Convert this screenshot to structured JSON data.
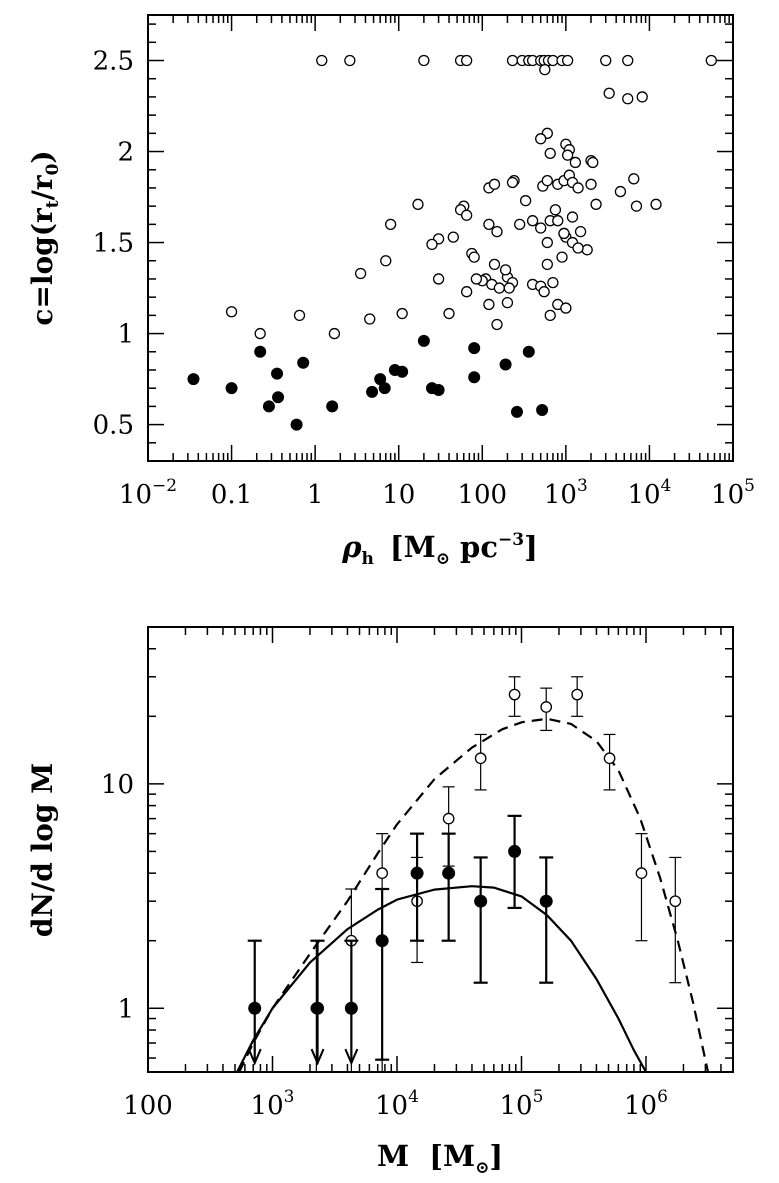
{
  "chart_data": [
    {
      "type": "scatter",
      "xlabel_symbol": "ρ",
      "xlabel_sub": "h",
      "xlabel_units": "[M",
      "xlabel_units_sub": "⊙",
      "xlabel_units_rest": " pc",
      "xlabel_units_sup": "−3",
      "xlabel_units_close": "]",
      "ylabel_prefix": "c=log(r",
      "ylabel_sub1": "t",
      "ylabel_mid": "/r",
      "ylabel_sub2": "0",
      "ylabel_close": ")",
      "xscale": "log",
      "xlim": [
        0.01,
        100000
      ],
      "ylim": [
        0.3,
        2.75
      ],
      "x_ticks": [
        {
          "value": 0.01,
          "base": "10",
          "exp": "−2"
        },
        {
          "value": 0.1,
          "label": "0.1"
        },
        {
          "value": 1,
          "label": "1"
        },
        {
          "value": 10,
          "label": "10"
        },
        {
          "value": 100,
          "label": "100"
        },
        {
          "value": 1000,
          "base": "10",
          "exp": "3"
        },
        {
          "value": 10000,
          "base": "10",
          "exp": "4"
        },
        {
          "value": 100000,
          "base": "10",
          "exp": "5"
        }
      ],
      "y_ticks": [
        {
          "value": 0.5,
          "label": "0.5"
        },
        {
          "value": 1,
          "label": "1"
        },
        {
          "value": 1.5,
          "label": "1.5"
        },
        {
          "value": 2,
          "label": "2"
        },
        {
          "value": 2.5,
          "label": "2.5"
        }
      ],
      "series": [
        {
          "marker": "open-circle",
          "points": [
            [
              1.2,
              2.5
            ],
            [
              2.6,
              2.5
            ],
            [
              20,
              2.5
            ],
            [
              55,
              2.5
            ],
            [
              65,
              2.5
            ],
            [
              230,
              2.5
            ],
            [
              300,
              2.5
            ],
            [
              360,
              2.5
            ],
            [
              400,
              2.5
            ],
            [
              500,
              2.5
            ],
            [
              550,
              2.5
            ],
            [
              620,
              2.5
            ],
            [
              700,
              2.5
            ],
            [
              900,
              2.5
            ],
            [
              1050,
              2.5
            ],
            [
              3000,
              2.5
            ],
            [
              5500,
              2.5
            ],
            [
              55000,
              2.5
            ],
            [
              560,
              2.45
            ],
            [
              3300,
              2.32
            ],
            [
              5500,
              2.29
            ],
            [
              8200,
              2.3
            ],
            [
              1300,
              1.94
            ],
            [
              600,
              2.1
            ],
            [
              500,
              2.07
            ],
            [
              1000,
              2.04
            ],
            [
              1100,
              2.01
            ],
            [
              1050,
              1.98
            ],
            [
              650,
              1.99
            ],
            [
              2000,
              1.95
            ],
            [
              2100,
              1.94
            ],
            [
              240,
              1.84
            ],
            [
              230,
              1.83
            ],
            [
              530,
              1.81
            ],
            [
              600,
              1.84
            ],
            [
              800,
              1.82
            ],
            [
              950,
              1.84
            ],
            [
              1100,
              1.87
            ],
            [
              1200,
              1.83
            ],
            [
              1400,
              1.8
            ],
            [
              2000,
              1.82
            ],
            [
              4500,
              1.78
            ],
            [
              6500,
              1.85
            ],
            [
              120,
              1.8
            ],
            [
              140,
              1.82
            ],
            [
              60,
              1.7
            ],
            [
              17,
              1.71
            ],
            [
              12000,
              1.71
            ],
            [
              7000,
              1.7
            ],
            [
              2300,
              1.71
            ],
            [
              750,
              1.68
            ],
            [
              400,
              1.62
            ],
            [
              330,
              1.73
            ],
            [
              120,
              1.6
            ],
            [
              280,
              1.6
            ],
            [
              150,
              1.56
            ],
            [
              500,
              1.58
            ],
            [
              650,
              1.62
            ],
            [
              800,
              1.62
            ],
            [
              1200,
              1.64
            ],
            [
              1500,
              1.56
            ],
            [
              600,
              1.5
            ],
            [
              950,
              1.55
            ],
            [
              1000,
              1.53
            ],
            [
              1800,
              1.46
            ],
            [
              1200,
              1.5
            ],
            [
              1400,
              1.47
            ],
            [
              55,
              1.68
            ],
            [
              65,
              1.65
            ],
            [
              45,
              1.53
            ],
            [
              30,
              1.52
            ],
            [
              25,
              1.49
            ],
            [
              75,
              1.44
            ],
            [
              80,
              1.42
            ],
            [
              8,
              1.6
            ],
            [
              3.5,
              1.33
            ],
            [
              7,
              1.4
            ],
            [
              4.5,
              1.08
            ],
            [
              11,
              1.11
            ],
            [
              1.7,
              1.0
            ],
            [
              0.65,
              1.1
            ],
            [
              0.1,
              1.12
            ],
            [
              0.22,
              1.0
            ],
            [
              110,
              1.3
            ],
            [
              130,
              1.27
            ],
            [
              160,
              1.25
            ],
            [
              140,
              1.38
            ],
            [
              200,
              1.31
            ],
            [
              190,
              1.35
            ],
            [
              230,
              1.28
            ],
            [
              400,
              1.27
            ],
            [
              500,
              1.26
            ],
            [
              700,
              1.28
            ],
            [
              600,
              1.38
            ],
            [
              900,
              1.42
            ],
            [
              950,
              1.55
            ],
            [
              40,
              1.11
            ],
            [
              65,
              1.23
            ],
            [
              100,
              1.29
            ],
            [
              200,
              1.17
            ],
            [
              210,
              1.25
            ],
            [
              120,
              1.16
            ],
            [
              550,
              1.23
            ],
            [
              650,
              1.1
            ],
            [
              800,
              1.16
            ],
            [
              1000,
              1.14
            ],
            [
              150,
              1.05
            ],
            [
              30,
              1.3
            ],
            [
              85,
              1.3
            ]
          ]
        },
        {
          "marker": "filled-circle",
          "points": [
            [
              0.035,
              0.75
            ],
            [
              0.1,
              0.7
            ],
            [
              0.22,
              0.9
            ],
            [
              0.35,
              0.78
            ],
            [
              0.28,
              0.6
            ],
            [
              0.36,
              0.65
            ],
            [
              0.6,
              0.5
            ],
            [
              0.72,
              0.84
            ],
            [
              1.6,
              0.6
            ],
            [
              4.8,
              0.68
            ],
            [
              6,
              0.75
            ],
            [
              6.8,
              0.7
            ],
            [
              9,
              0.8
            ],
            [
              11,
              0.79
            ],
            [
              20,
              0.96
            ],
            [
              25,
              0.7
            ],
            [
              30,
              0.69
            ],
            [
              80,
              0.92
            ],
            [
              80,
              0.76
            ],
            [
              190,
              0.83
            ],
            [
              260,
              0.57
            ],
            [
              360,
              0.9
            ],
            [
              520,
              0.58
            ]
          ]
        }
      ]
    },
    {
      "type": "scatter",
      "xlabel_main": "M  [M",
      "xlabel_sub": "⊙",
      "xlabel_close": "]",
      "ylabel": "dN/d log M",
      "xscale": "log",
      "yscale": "log",
      "xlim": [
        100,
        5000000
      ],
      "ylim": [
        0.52,
        50
      ],
      "x_ticks": [
        {
          "value": 100,
          "label": "100"
        },
        {
          "value": 1000,
          "base": "10",
          "exp": "3"
        },
        {
          "value": 10000,
          "base": "10",
          "exp": "4"
        },
        {
          "value": 100000,
          "base": "10",
          "exp": "5"
        },
        {
          "value": 1000000,
          "base": "10",
          "exp": "6"
        }
      ],
      "y_ticks": [
        {
          "value": 1,
          "label": "1"
        },
        {
          "value": 10,
          "label": "10"
        }
      ],
      "series": [
        {
          "marker": "open-circle",
          "points": [
            {
              "x": 2250,
              "y": 1,
              "lo": 0.52,
              "hi": 2
            },
            {
              "x": 4300,
              "y": 2,
              "lo": 0.52,
              "hi": 3.4
            },
            {
              "x": 7600,
              "y": 4,
              "lo": 0.52,
              "hi": 6
            },
            {
              "x": 14500,
              "y": 3,
              "lo": 1.6,
              "hi": 4.7
            },
            {
              "x": 26000,
              "y": 7,
              "lo": 4.3,
              "hi": 9.7
            },
            {
              "x": 47000,
              "y": 13,
              "lo": 9.4,
              "hi": 16.6
            },
            {
              "x": 88000,
              "y": 25,
              "lo": 20,
              "hi": 30
            },
            {
              "x": 158000,
              "y": 22,
              "lo": 17.3,
              "hi": 26.7
            },
            {
              "x": 280000,
              "y": 25,
              "lo": 20,
              "hi": 30
            },
            {
              "x": 510000,
              "y": 13,
              "lo": 9.4,
              "hi": 16.6
            },
            {
              "x": 920000,
              "y": 4,
              "lo": 2,
              "hi": 6
            },
            {
              "x": 1720000,
              "y": 3,
              "lo": 1.3,
              "hi": 4.7
            }
          ]
        },
        {
          "marker": "filled-circle",
          "points": [
            {
              "x": 720,
              "y": 1,
              "lo": 0.57,
              "hi": 2,
              "arrow": true
            },
            {
              "x": 2300,
              "y": 1,
              "lo": 0.57,
              "hi": 2,
              "arrow": true
            },
            {
              "x": 4300,
              "y": 1,
              "lo": 0.57,
              "hi": 2,
              "arrow": true
            },
            {
              "x": 7600,
              "y": 2,
              "lo": 0.59,
              "hi": 3.4
            },
            {
              "x": 14500,
              "y": 4,
              "lo": 2,
              "hi": 6
            },
            {
              "x": 26000,
              "y": 4,
              "lo": 2,
              "hi": 6
            },
            {
              "x": 47000,
              "y": 3,
              "lo": 1.3,
              "hi": 4.7
            },
            {
              "x": 88000,
              "y": 5,
              "lo": 2.8,
              "hi": 7.2
            },
            {
              "x": 158000,
              "y": 3,
              "lo": 1.3,
              "hi": 4.7
            }
          ]
        }
      ],
      "curves": [
        {
          "style": "dashed",
          "points": [
            [
              540,
              0.52
            ],
            [
              700,
              0.7
            ],
            [
              1000,
              1.0
            ],
            [
              2000,
              1.75
            ],
            [
              4000,
              3.0
            ],
            [
              7000,
              4.9
            ],
            [
              10000,
              6.6
            ],
            [
              20000,
              10.5
            ],
            [
              40000,
              14.5
            ],
            [
              70000,
              17.5
            ],
            [
              100000,
              18.8
            ],
            [
              160000,
              19.5
            ],
            [
              250000,
              18.5
            ],
            [
              400000,
              15.5
            ],
            [
              600000,
              11.5
            ],
            [
              900000,
              7.0
            ],
            [
              1300000,
              3.8
            ],
            [
              1800000,
              2.0
            ],
            [
              2400000,
              1.05
            ],
            [
              2800000,
              0.7
            ],
            [
              3150000,
              0.52
            ]
          ]
        },
        {
          "style": "solid",
          "points": [
            [
              520,
              0.52
            ],
            [
              700,
              0.72
            ],
            [
              1000,
              1.0
            ],
            [
              2000,
              1.6
            ],
            [
              4000,
              2.25
            ],
            [
              7000,
              2.75
            ],
            [
              10000,
              3.05
            ],
            [
              20000,
              3.38
            ],
            [
              40000,
              3.5
            ],
            [
              60000,
              3.45
            ],
            [
              100000,
              3.15
            ],
            [
              160000,
              2.6
            ],
            [
              250000,
              2.0
            ],
            [
              400000,
              1.35
            ],
            [
              600000,
              0.9
            ],
            [
              800000,
              0.65
            ],
            [
              1000000,
              0.52
            ]
          ]
        }
      ]
    }
  ]
}
